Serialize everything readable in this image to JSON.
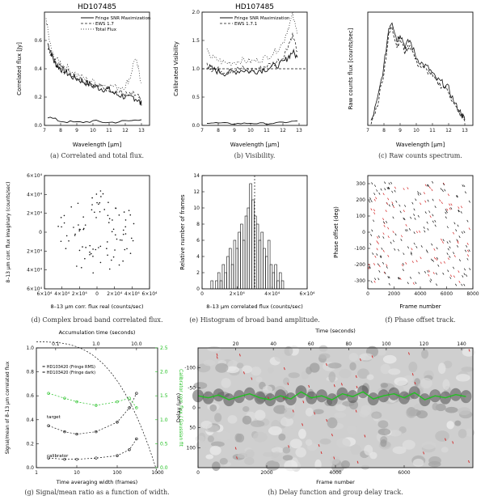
{
  "colors": {
    "ink": "#111111",
    "red": "#d22020",
    "green": "#22c022",
    "grey": "#555555"
  },
  "chart_data": [
    {
      "id": "a",
      "type": "line",
      "title": "HD107485",
      "xlabel": "Wavelength [μm]",
      "ylabel": "Correlated flux [Jy]",
      "xlim": [
        7,
        13.5
      ],
      "ylim": [
        0,
        0.8
      ],
      "xticks": [
        7,
        8,
        9,
        10,
        11,
        12,
        13
      ],
      "yticks": [
        0.0,
        0.2,
        0.4,
        0.6
      ],
      "legend": [
        "Fringe SNR Maximization",
        "EWS 1.7",
        "Total Flux"
      ],
      "series": [
        {
          "name": "Fringe SNR Maximization",
          "style": "solid",
          "x": [
            7.2,
            7.4,
            7.6,
            7.8,
            8.0,
            8.3,
            8.6,
            9.0,
            9.4,
            9.8,
            10.2,
            10.6,
            11.0,
            11.4,
            11.8,
            12.2,
            12.5,
            12.8,
            13.0
          ],
          "y": [
            0.58,
            0.52,
            0.45,
            0.42,
            0.4,
            0.38,
            0.35,
            0.33,
            0.31,
            0.29,
            0.27,
            0.26,
            0.25,
            0.22,
            0.21,
            0.19,
            0.2,
            0.18,
            0.14
          ]
        },
        {
          "name": "EWS 1.7",
          "style": "dash",
          "x": [
            7.2,
            7.4,
            7.6,
            7.8,
            8.0,
            8.3,
            8.6,
            9.0,
            9.4,
            9.8,
            10.2,
            10.6,
            11.0,
            11.4,
            11.8,
            12.2,
            12.5,
            12.8,
            13.0
          ],
          "y": [
            0.56,
            0.5,
            0.46,
            0.43,
            0.41,
            0.39,
            0.37,
            0.34,
            0.32,
            0.3,
            0.28,
            0.27,
            0.26,
            0.24,
            0.23,
            0.21,
            0.22,
            0.2,
            0.16
          ]
        },
        {
          "name": "Total Flux",
          "style": "dot",
          "x": [
            7.1,
            7.3,
            7.5,
            7.8,
            8.1,
            8.5,
            9.0,
            9.5,
            10.0,
            10.5,
            11.0,
            11.5,
            12.0,
            12.3,
            12.6,
            12.8,
            13.0
          ],
          "y": [
            0.76,
            0.6,
            0.5,
            0.46,
            0.43,
            0.4,
            0.36,
            0.33,
            0.31,
            0.29,
            0.28,
            0.27,
            0.28,
            0.34,
            0.48,
            0.4,
            0.3
          ]
        },
        {
          "name": "noise",
          "style": "solid",
          "x": [
            7.2,
            8,
            9,
            10,
            11,
            12,
            13
          ],
          "y": [
            0.06,
            0.03,
            0.02,
            0.03,
            0.02,
            0.03,
            0.04
          ]
        }
      ]
    },
    {
      "id": "b",
      "type": "line",
      "title": "HD107485",
      "xlabel": "Wavelength [μm]",
      "ylabel": "Calibrated Visibility",
      "xlim": [
        7,
        13.5
      ],
      "ylim": [
        0,
        2.0
      ],
      "xticks": [
        7,
        8,
        9,
        10,
        11,
        12,
        13
      ],
      "yticks": [
        0.0,
        0.5,
        1.0,
        1.5,
        2.0
      ],
      "legend": [
        "Fringe SNR Maximization",
        "EWS 1.7.1"
      ],
      "reference_line": 1.0,
      "series": [
        {
          "name": "Fringe SNR Maximization",
          "style": "solid",
          "x": [
            7.3,
            7.6,
            8.0,
            8.5,
            9.0,
            9.5,
            10.0,
            10.5,
            11.0,
            11.5,
            12.0,
            12.3,
            12.6,
            12.9
          ],
          "y": [
            1.05,
            1.0,
            0.95,
            0.92,
            0.95,
            0.98,
            0.95,
            0.97,
            1.0,
            1.05,
            1.1,
            1.2,
            1.3,
            1.2
          ]
        },
        {
          "name": "EWS 1.7.1",
          "style": "dash",
          "x": [
            7.3,
            7.6,
            8.0,
            8.5,
            9.0,
            9.5,
            10.0,
            10.5,
            11.0,
            11.5,
            12.0,
            12.3,
            12.6,
            12.9
          ],
          "y": [
            1.08,
            1.0,
            0.98,
            0.96,
            0.98,
            1.0,
            0.97,
            1.0,
            1.05,
            1.1,
            1.2,
            1.4,
            1.6,
            1.3
          ]
        },
        {
          "name": "errors",
          "style": "dot",
          "x": [
            7.3,
            7.6,
            8.0,
            8.5,
            9.0,
            9.5,
            10.0,
            10.5,
            11.0,
            11.5,
            12.0,
            12.3,
            12.6,
            12.9
          ],
          "y": [
            1.3,
            1.2,
            1.15,
            1.1,
            1.12,
            1.15,
            1.13,
            1.15,
            1.2,
            1.3,
            1.45,
            1.7,
            1.95,
            1.6
          ]
        },
        {
          "name": "noise",
          "style": "solid",
          "x": [
            7.3,
            8,
            9,
            10,
            11,
            12,
            12.9
          ],
          "y": [
            0.05,
            0.04,
            0.03,
            0.04,
            0.03,
            0.05,
            0.08
          ]
        }
      ]
    },
    {
      "id": "c",
      "type": "line",
      "xlabel": "Wavelength [μm]",
      "ylabel": "Raw counts flux [counts/sec]",
      "xlim": [
        7,
        13.5
      ],
      "ylim": [
        0,
        800
      ],
      "xticks": [
        7,
        8,
        9,
        10,
        11,
        12,
        13
      ],
      "yticks": [],
      "series": [
        {
          "name": "counts",
          "style": "solid",
          "x": [
            7.2,
            7.6,
            8.0,
            8.3,
            8.5,
            8.8,
            9.0,
            9.3,
            9.6,
            10.0,
            10.4,
            10.8,
            11.2,
            11.6,
            12.0,
            12.4,
            12.8,
            13.0
          ],
          "y": [
            20,
            180,
            420,
            690,
            740,
            600,
            650,
            560,
            600,
            480,
            430,
            400,
            330,
            300,
            260,
            150,
            80,
            40
          ]
        },
        {
          "name": "counts-2",
          "style": "dash",
          "x": [
            7.2,
            7.6,
            8.0,
            8.3,
            8.5,
            8.8,
            9.0,
            9.3,
            9.6,
            10.0,
            10.4,
            10.8,
            11.2,
            11.6,
            12.0,
            12.4,
            12.8,
            13.0
          ],
          "y": [
            10,
            150,
            380,
            640,
            700,
            560,
            610,
            520,
            570,
            450,
            400,
            380,
            310,
            280,
            240,
            130,
            70,
            30
          ]
        }
      ]
    },
    {
      "id": "d",
      "type": "scatter",
      "xlabel": "8–13 μm corr. flux real (counts/sec)",
      "ylabel": "8–13 μm corr. flux imaginary (counts/sec)",
      "xlim": [
        -60000,
        60000
      ],
      "ylim": [
        -60000,
        60000
      ],
      "xtick_labels": [
        "6×10⁴",
        "4×10⁴",
        "2×10⁴",
        "0",
        "2×10⁴",
        "4×10⁴",
        "6×10⁴"
      ],
      "ytick_labels": [
        "6×10⁴",
        "4×10⁴",
        "2×10⁴",
        "0",
        "2×10⁴",
        "4×10⁴",
        "6×10⁴"
      ]
    },
    {
      "id": "e",
      "type": "bar",
      "xlabel": "8–13 μm correlated flux (counts/sec)",
      "ylabel": "Relative number of frames",
      "xlim": [
        0,
        60000
      ],
      "ylim": [
        0,
        14
      ],
      "xtick_labels": [
        "0",
        "2×10⁴",
        "4×10⁴",
        "6×10⁴"
      ],
      "yticks": [
        0,
        2,
        4,
        6,
        8,
        10,
        12,
        14
      ],
      "reference_x": 30000,
      "values": [
        1,
        0,
        1,
        2,
        1,
        3,
        2,
        4,
        5,
        3,
        6,
        5,
        7,
        8,
        6,
        9,
        10,
        13,
        11,
        9,
        8,
        6,
        7,
        5,
        4,
        6,
        3,
        2,
        3,
        1,
        2,
        1
      ]
    },
    {
      "id": "f",
      "type": "scatter",
      "xlabel": "Frame number",
      "ylabel": "Phase offset (deg)",
      "xlim": [
        0,
        8000
      ],
      "ylim": [
        -350,
        350
      ],
      "xtick_labels": [
        "0",
        "2000",
        "4000",
        "6000",
        "8000"
      ],
      "ytick_labels": [
        "300",
        "200",
        "100",
        "0",
        "-100",
        "-200",
        "-300"
      ]
    },
    {
      "id": "g",
      "type": "line",
      "title": "Accumulation time (seconds)",
      "xlabel": "Time averaging width (frames)",
      "ylabel": "Signal/mean of 8–13 μm correlated flux",
      "ylabel_right": "Calibrator corr. flux / Gaussian fit",
      "xscale": "log",
      "xlim": [
        1,
        1000
      ],
      "ylim": [
        0,
        1.0
      ],
      "xtick_labels": [
        "1",
        "10",
        "100",
        "1000"
      ],
      "top_tick_labels": [
        "0.1",
        "1.0",
        "10.0"
      ],
      "yticks": [
        0.0,
        0.2,
        0.4,
        0.6,
        0.8,
        1.0
      ],
      "right_tick_labels": [
        "0.0",
        "0.5",
        "1.0",
        "1.5",
        "2.0",
        "2.5"
      ],
      "legend": [
        "= HD103420 (Fringe RMS)",
        "= HD103420 (Fringe dark)"
      ],
      "annotations": [
        "target",
        "calibrator"
      ],
      "series": [
        {
          "name": "target",
          "x": [
            2,
            5,
            10,
            30,
            100,
            200,
            300
          ],
          "y": [
            0.35,
            0.3,
            0.28,
            0.3,
            0.38,
            0.5,
            0.62
          ]
        },
        {
          "name": "calibrator",
          "x": [
            2,
            5,
            10,
            30,
            100,
            200,
            300
          ],
          "y": [
            0.08,
            0.07,
            0.07,
            0.08,
            0.1,
            0.15,
            0.24
          ]
        },
        {
          "name": "Gaussian fit",
          "x": [
            2,
            5,
            10,
            30,
            100,
            200,
            300
          ],
          "y": [
            0.62,
            0.58,
            0.55,
            0.52,
            0.55,
            0.58,
            0.5
          ]
        }
      ]
    },
    {
      "id": "h",
      "type": "heatmap",
      "xlabel": "Frame number",
      "ylabel": "Delay (μm)",
      "top_label": "Time (seconds)",
      "xlim": [
        0,
        8000
      ],
      "ylim": [
        -150,
        150
      ],
      "xtick_labels": [
        "0",
        "2000",
        "4000",
        "6000"
      ],
      "top_tick_labels": [
        "20",
        "40",
        "60",
        "80",
        "100",
        "120",
        "140"
      ],
      "ytick_labels": [
        "-100",
        "-50",
        "0",
        "50",
        "100"
      ],
      "group_delay_track": {
        "x": [
          0,
          300,
          600,
          900,
          1200,
          1500,
          1800,
          2100,
          2400,
          2700,
          3000,
          3300,
          3600,
          3900,
          4200,
          4500,
          4800,
          5100,
          5400,
          5700,
          6000,
          6300,
          6600,
          6900,
          7200,
          7500,
          7800
        ],
        "y": [
          -30,
          -25,
          -32,
          -20,
          -28,
          -35,
          -25,
          -20,
          -30,
          -22,
          -40,
          -25,
          -30,
          -20,
          -35,
          -28,
          -40,
          -22,
          -30,
          -35,
          -25,
          -38,
          -20,
          -30,
          -25,
          -33,
          -28
        ]
      }
    }
  ],
  "captions": {
    "a": "(a) Correlated and total flux.",
    "b": "(b) Visibility.",
    "c": "(c) Raw counts spectrum.",
    "d": "(d) Complex broad band correlated flux.",
    "e": "(e) Histogram of broad band amplitude.",
    "f": "(f) Phase offset track.",
    "g": "(g) Signal/mean ratio as a function of width.",
    "h": "(h) Delay function and group delay track."
  }
}
